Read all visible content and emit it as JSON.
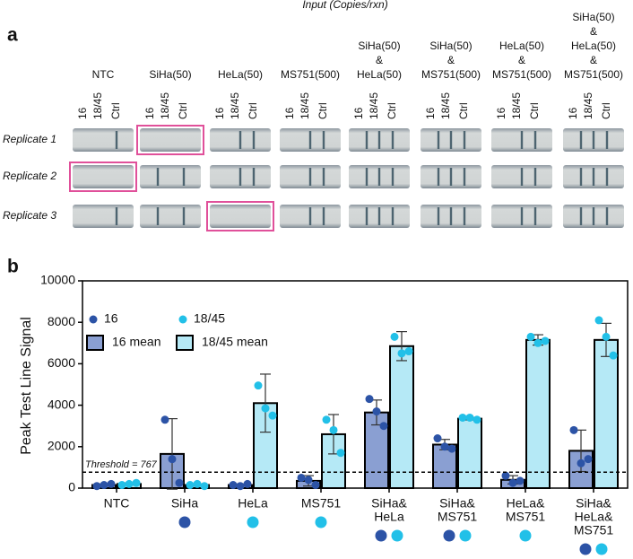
{
  "panel_a": {
    "label": "a",
    "header": "Input (Copies/rxn)",
    "columns": [
      [
        "NTC"
      ],
      [
        "SiHa(50)"
      ],
      [
        "HeLa(50)"
      ],
      [
        "MS751(500)"
      ],
      [
        "SiHa(50)",
        "&",
        "HeLa(50)"
      ],
      [
        "SiHa(50)",
        "&",
        "MS751(500)"
      ],
      [
        "HeLa(50)",
        "&",
        "MS751(500)"
      ],
      [
        "SiHa(50)",
        "&",
        "HeLa(50)",
        "&",
        "MS751(500)"
      ]
    ],
    "lanes": [
      "16",
      "18/45",
      "Ctrl"
    ],
    "rows": [
      "Replicate 1",
      "Replicate 2",
      "Replicate 3"
    ]
  },
  "chart_data": {
    "type": "bar",
    "panel_label": "b",
    "ylabel": "Peak Test Line Signal",
    "categories": [
      [
        "NTC"
      ],
      [
        "SiHa"
      ],
      [
        "HeLa"
      ],
      [
        "MS751"
      ],
      [
        "SiHa&",
        "HeLa"
      ],
      [
        "SiHa&",
        "MS751"
      ],
      [
        "HeLa&",
        "MS751"
      ],
      [
        "SiHa&",
        "HeLa&",
        "MS751"
      ]
    ],
    "ylim": [
      0,
      10000
    ],
    "yticks": [
      0,
      2000,
      4000,
      6000,
      8000,
      10000
    ],
    "legend": "upper left",
    "threshold": {
      "value": 767,
      "label": "Threshold = 767"
    },
    "series": [
      {
        "name": "16 mean",
        "type": "bar",
        "color": "#8a9fd2",
        "values": [
          150,
          1650,
          150,
          350,
          3650,
          2100,
          400,
          1800
        ],
        "errors": [
          50,
          1700,
          50,
          250,
          600,
          250,
          200,
          1000
        ]
      },
      {
        "name": "18/45 mean",
        "type": "bar",
        "color": "#b5e9f6",
        "values": [
          200,
          150,
          4100,
          2600,
          6850,
          3350,
          7150,
          7150
        ],
        "errors": [
          50,
          50,
          1400,
          950,
          700,
          60,
          250,
          800
        ]
      },
      {
        "name": "16",
        "type": "scatter",
        "color": "#2c53a6",
        "values": [
          [
            100,
            150,
            200
          ],
          [
            3300,
            1400,
            250
          ],
          [
            150,
            100,
            200
          ],
          [
            500,
            400,
            150
          ],
          [
            4300,
            3700,
            3000
          ],
          [
            2400,
            2000,
            1900
          ],
          [
            600,
            250,
            350
          ],
          [
            2800,
            1200,
            1400
          ]
        ]
      },
      {
        "name": "18/45",
        "type": "scatter",
        "color": "#22c0e8",
        "values": [
          [
            150,
            200,
            250
          ],
          [
            150,
            200,
            100
          ],
          [
            4950,
            3850,
            3500
          ],
          [
            3300,
            2800,
            1700
          ],
          [
            7300,
            6500,
            6600
          ],
          [
            3400,
            3400,
            3300
          ],
          [
            7300,
            7000,
            7100
          ],
          [
            8100,
            7300,
            6400
          ]
        ]
      }
    ],
    "expected": [
      [],
      [
        "16"
      ],
      [
        "18/45"
      ],
      [
        "18/45"
      ],
      [
        "16",
        "18/45"
      ],
      [
        "16",
        "18/45"
      ],
      [
        "18/45"
      ],
      [
        "16",
        "18/45"
      ]
    ]
  }
}
